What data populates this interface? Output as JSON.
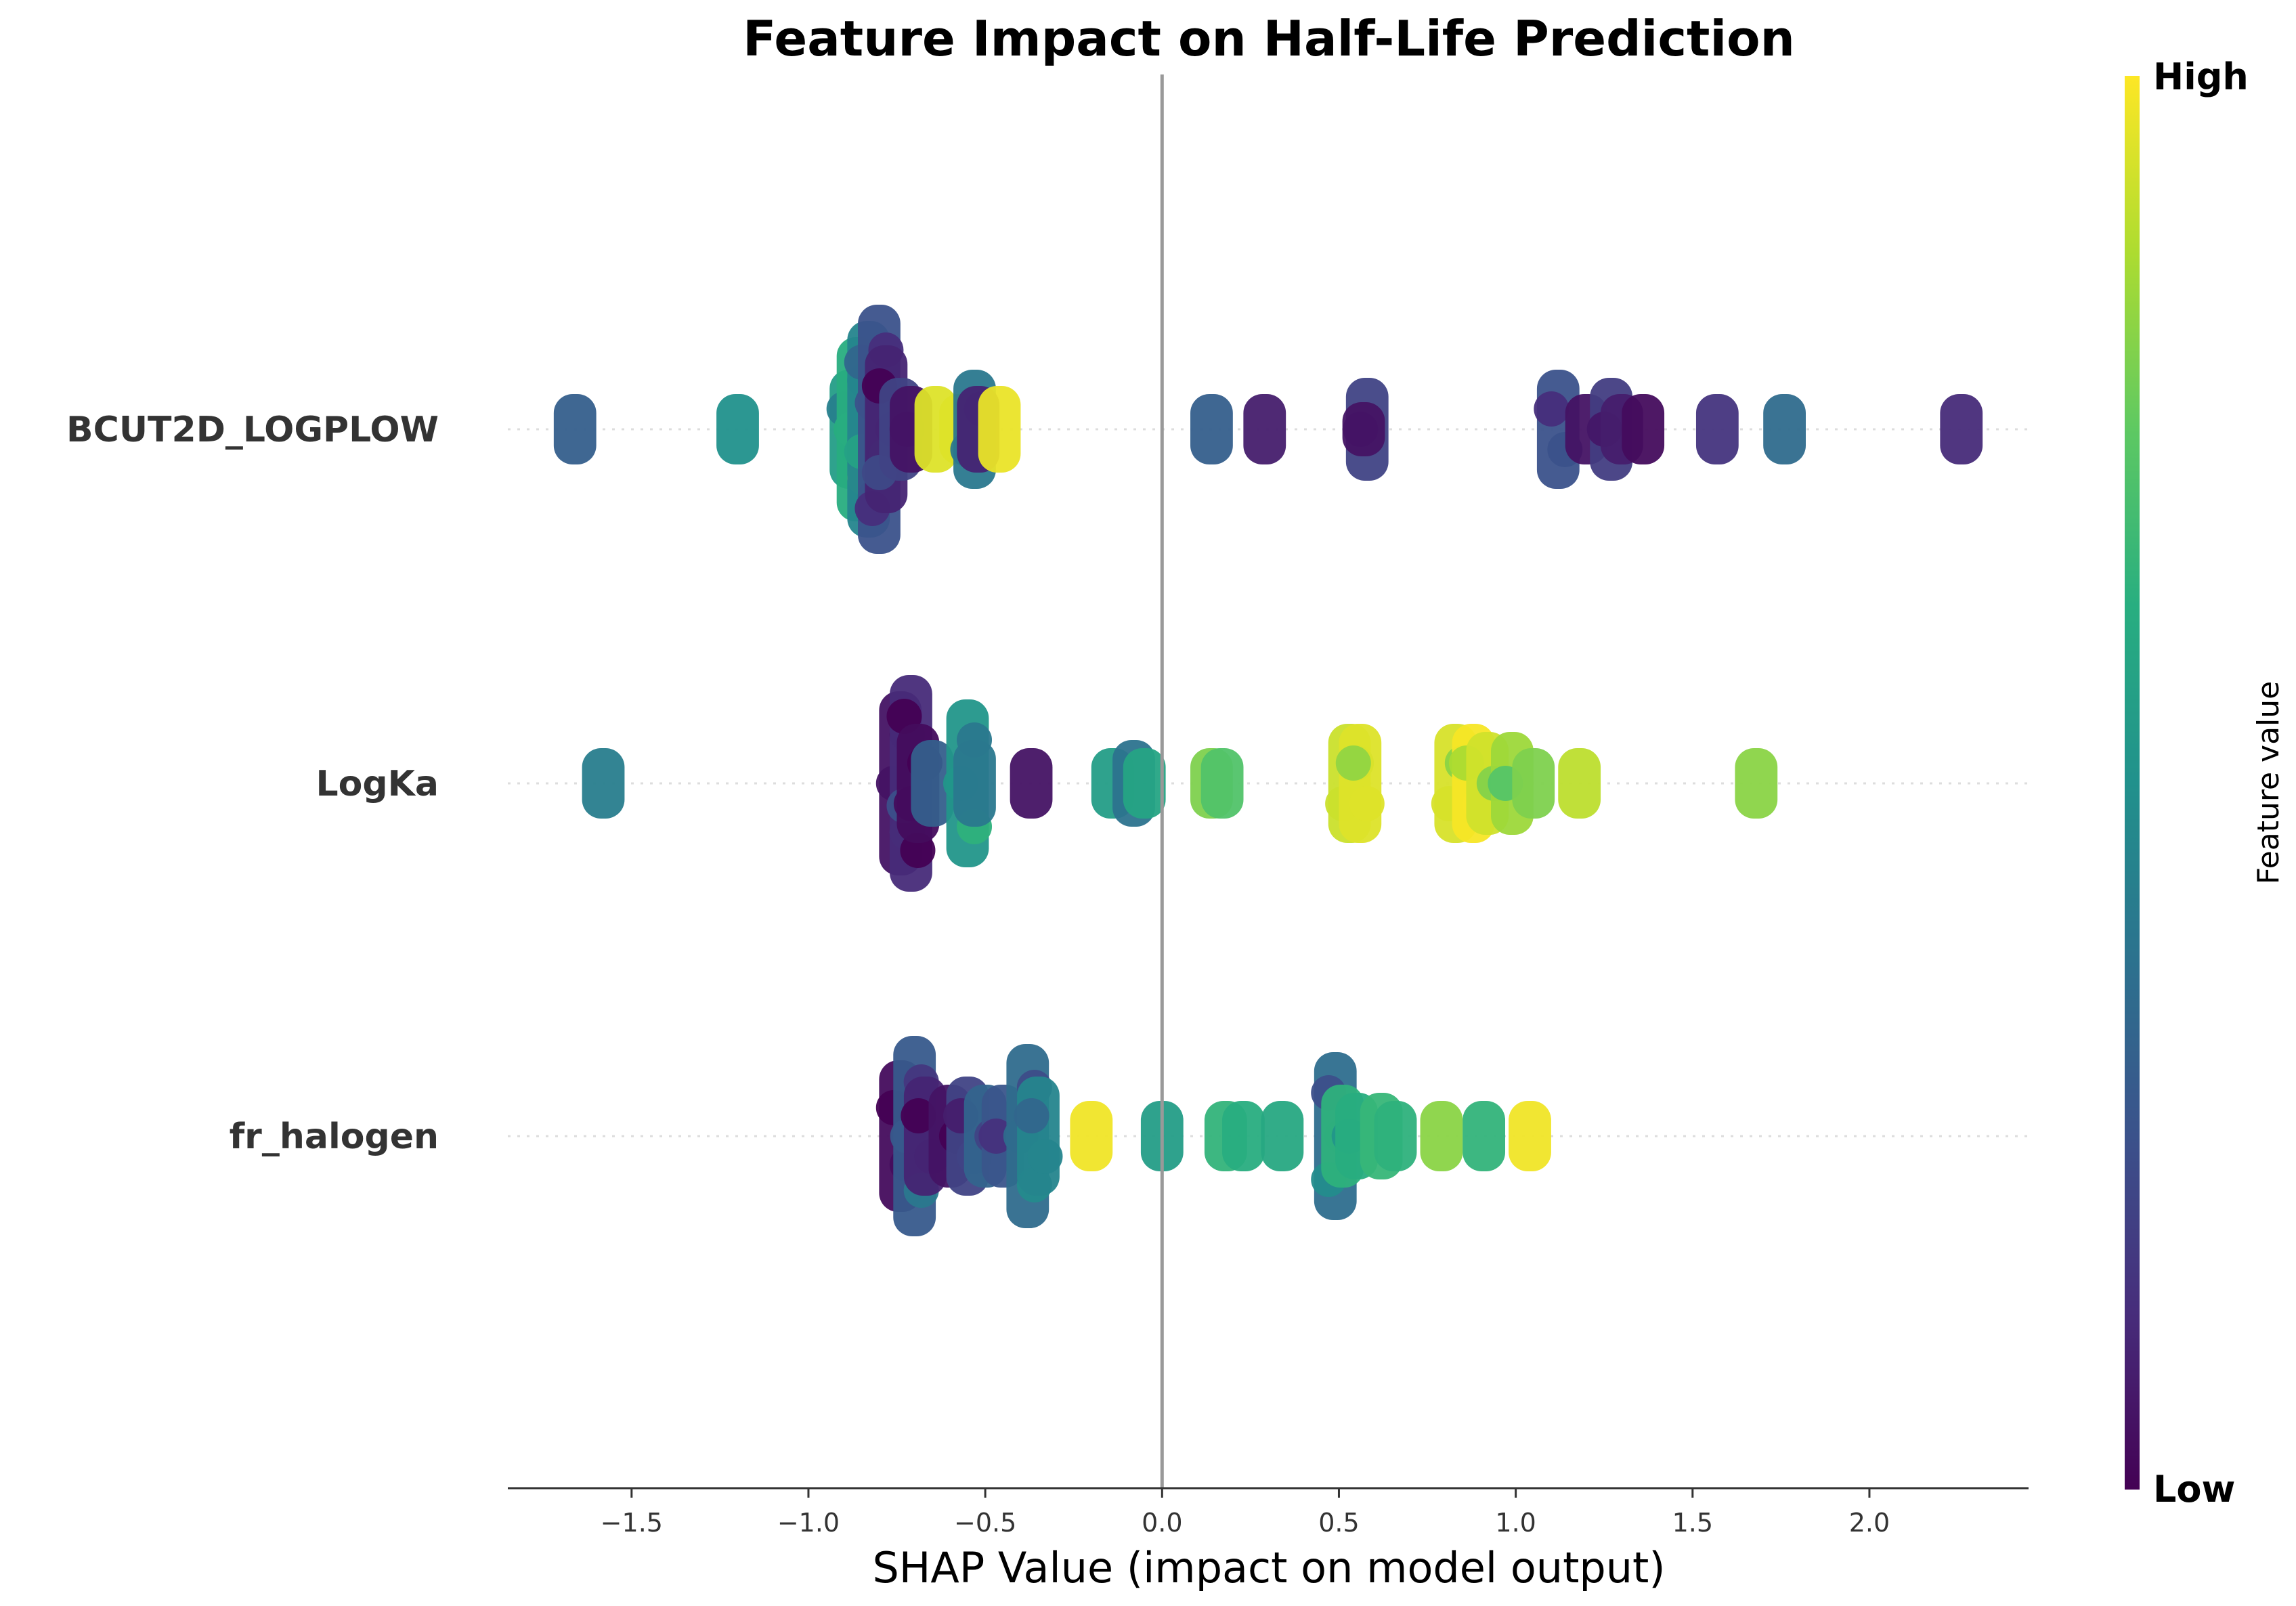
{
  "chart_data": {
    "type": "scatter",
    "title": "Feature Impact on Half-Life Prediction",
    "xlabel": "SHAP Value (impact on model output)",
    "xlim": [
      -1.85,
      2.45
    ],
    "xticks": [
      -1.5,
      -1.0,
      -0.5,
      0.0,
      0.5,
      1.0,
      1.5,
      2.0
    ],
    "xtick_labels": [
      "−1.5",
      "−1.0",
      "−0.5",
      "0.0",
      "0.5",
      "1.0",
      "1.5",
      "2.0"
    ],
    "colormap": "viridis",
    "colorbar": {
      "label": "Feature value",
      "high": "High",
      "low": "Low"
    },
    "zero_line": true,
    "grid": false,
    "features": [
      {
        "name": "BCUT2D_LOGPLOW",
        "clusters": [
          {
            "x": -1.66,
            "n": 3,
            "v": 0.3
          },
          {
            "x": -1.2,
            "n": 3,
            "v": 0.5
          },
          {
            "x": -0.88,
            "n": 6,
            "v": 0.55
          },
          {
            "x": -0.86,
            "n": 10,
            "v": 0.62
          },
          {
            "x": -0.83,
            "n": 12,
            "v": 0.45
          },
          {
            "x": -0.8,
            "n": 14,
            "v": 0.25
          },
          {
            "x": -0.78,
            "n": 9,
            "v": 0.1
          },
          {
            "x": -0.74,
            "n": 5,
            "v": 0.2
          },
          {
            "x": -0.71,
            "n": 4,
            "v": 0.05
          },
          {
            "x": -0.64,
            "n": 4,
            "v": 0.95
          },
          {
            "x": -0.57,
            "n": 3,
            "v": 0.95
          },
          {
            "x": -0.53,
            "n": 6,
            "v": 0.4
          },
          {
            "x": -0.52,
            "n": 4,
            "v": 0.1
          },
          {
            "x": -0.46,
            "n": 4,
            "v": 0.97
          },
          {
            "x": 0.14,
            "n": 3,
            "v": 0.3
          },
          {
            "x": 0.29,
            "n": 3,
            "v": 0.08
          },
          {
            "x": 0.58,
            "n": 5,
            "v": 0.2
          },
          {
            "x": 0.57,
            "n": 2,
            "v": 0.05
          },
          {
            "x": 1.12,
            "n": 6,
            "v": 0.25
          },
          {
            "x": 1.2,
            "n": 3,
            "v": 0.05
          },
          {
            "x": 1.27,
            "n": 5,
            "v": 0.18
          },
          {
            "x": 1.3,
            "n": 3,
            "v": 0.08
          },
          {
            "x": 1.36,
            "n": 3,
            "v": 0.03
          },
          {
            "x": 1.57,
            "n": 3,
            "v": 0.15
          },
          {
            "x": 1.76,
            "n": 3,
            "v": 0.35
          },
          {
            "x": 2.26,
            "n": 3,
            "v": 0.12
          }
        ]
      },
      {
        "name": "LogKa",
        "clusters": [
          {
            "x": -1.58,
            "n": 3,
            "v": 0.42
          },
          {
            "x": -0.74,
            "n": 10,
            "v": 0.05
          },
          {
            "x": -0.71,
            "n": 12,
            "v": 0.12
          },
          {
            "x": -0.69,
            "n": 6,
            "v": 0.03
          },
          {
            "x": -0.65,
            "n": 4,
            "v": 0.3
          },
          {
            "x": -0.55,
            "n": 9,
            "v": 0.52
          },
          {
            "x": -0.53,
            "n": 4,
            "v": 0.4
          },
          {
            "x": -0.37,
            "n": 3,
            "v": 0.05
          },
          {
            "x": -0.14,
            "n": 3,
            "v": 0.55
          },
          {
            "x": -0.08,
            "n": 4,
            "v": 0.38
          },
          {
            "x": -0.05,
            "n": 3,
            "v": 0.58
          },
          {
            "x": 0.14,
            "n": 3,
            "v": 0.8
          },
          {
            "x": 0.17,
            "n": 3,
            "v": 0.72
          },
          {
            "x": 0.53,
            "n": 6,
            "v": 0.92
          },
          {
            "x": 0.56,
            "n": 6,
            "v": 0.95
          },
          {
            "x": 0.83,
            "n": 6,
            "v": 0.94
          },
          {
            "x": 0.88,
            "n": 6,
            "v": 0.99
          },
          {
            "x": 0.92,
            "n": 5,
            "v": 0.93
          },
          {
            "x": 0.99,
            "n": 5,
            "v": 0.85
          },
          {
            "x": 1.05,
            "n": 3,
            "v": 0.8
          },
          {
            "x": 1.18,
            "n": 3,
            "v": 0.9
          },
          {
            "x": 1.68,
            "n": 3,
            "v": 0.82
          }
        ]
      },
      {
        "name": "fr_halogen",
        "clusters": [
          {
            "x": -0.74,
            "n": 8,
            "v": 0.03
          },
          {
            "x": -0.7,
            "n": 11,
            "v": 0.28
          },
          {
            "x": -0.67,
            "n": 6,
            "v": 0.1
          },
          {
            "x": -0.6,
            "n": 5,
            "v": 0.05
          },
          {
            "x": -0.55,
            "n": 6,
            "v": 0.2
          },
          {
            "x": -0.5,
            "n": 5,
            "v": 0.32
          },
          {
            "x": -0.45,
            "n": 5,
            "v": 0.26
          },
          {
            "x": -0.38,
            "n": 10,
            "v": 0.35
          },
          {
            "x": -0.35,
            "n": 6,
            "v": 0.45
          },
          {
            "x": -0.2,
            "n": 3,
            "v": 0.98
          },
          {
            "x": 0.0,
            "n": 3,
            "v": 0.55
          },
          {
            "x": 0.18,
            "n": 3,
            "v": 0.65
          },
          {
            "x": 0.23,
            "n": 3,
            "v": 0.62
          },
          {
            "x": 0.34,
            "n": 3,
            "v": 0.6
          },
          {
            "x": 0.49,
            "n": 9,
            "v": 0.36
          },
          {
            "x": 0.51,
            "n": 5,
            "v": 0.64
          },
          {
            "x": 0.55,
            "n": 4,
            "v": 0.62
          },
          {
            "x": 0.62,
            "n": 4,
            "v": 0.66
          },
          {
            "x": 0.66,
            "n": 3,
            "v": 0.64
          },
          {
            "x": 0.79,
            "n": 3,
            "v": 0.82
          },
          {
            "x": 0.91,
            "n": 3,
            "v": 0.65
          },
          {
            "x": 1.04,
            "n": 3,
            "v": 0.98
          }
        ]
      }
    ]
  }
}
